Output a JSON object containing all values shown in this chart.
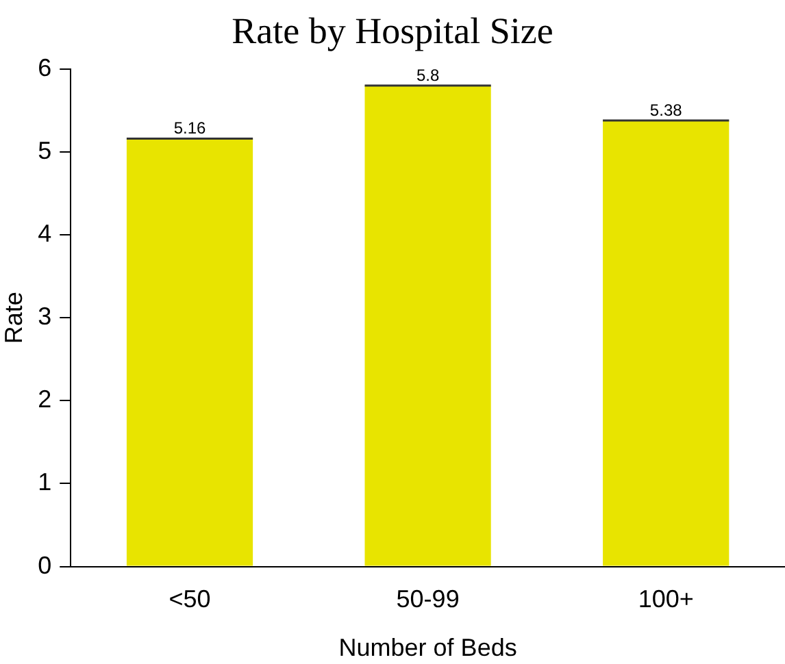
{
  "chart_data": {
    "type": "bar",
    "title": "Rate by Hospital Size",
    "xlabel": "Number of Beds",
    "ylabel": "Rate",
    "categories": [
      "<50",
      "50-99",
      "100+"
    ],
    "values": [
      5.16,
      5.8,
      5.38
    ],
    "color": "#e8e400",
    "ylim": [
      0,
      6
    ],
    "yticks": [
      0,
      1,
      2,
      3,
      4,
      5,
      6
    ],
    "grid": false,
    "legend": false,
    "data_labels": true
  }
}
